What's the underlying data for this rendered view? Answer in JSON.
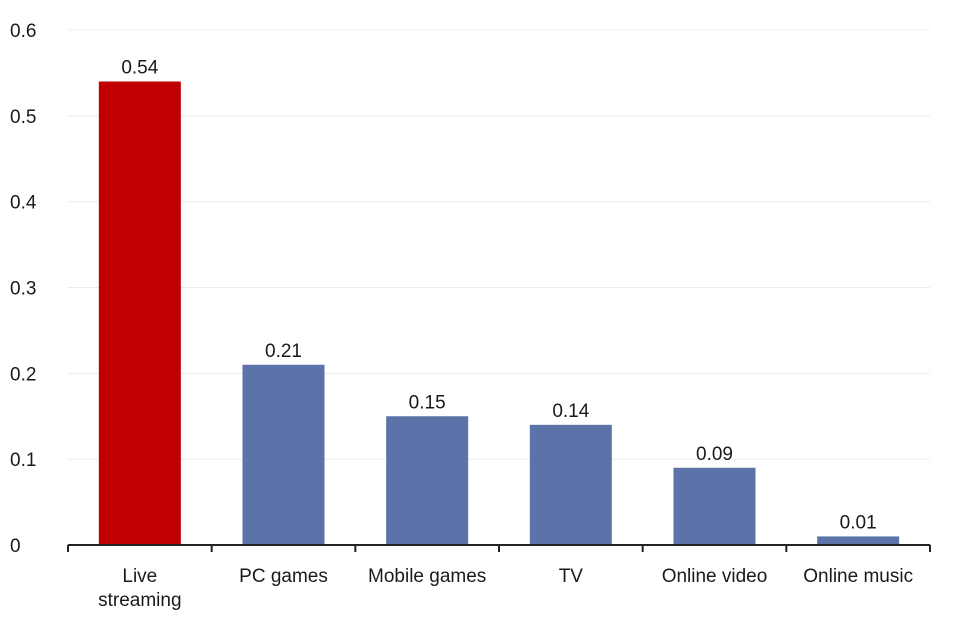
{
  "chart_data": {
    "type": "bar",
    "title": "",
    "xlabel": "",
    "ylabel": "",
    "categories": [
      [
        "Live",
        "streaming"
      ],
      [
        "PC games"
      ],
      [
        "Mobile games"
      ],
      [
        "TV"
      ],
      [
        "Online video"
      ],
      [
        "Online music"
      ]
    ],
    "values": [
      0.54,
      0.21,
      0.15,
      0.14,
      0.09,
      0.01
    ],
    "value_labels": [
      "0.54",
      "0.21",
      "0.15",
      "0.14",
      "0.09",
      "0.01"
    ],
    "ylim": [
      0,
      0.6
    ],
    "yticks": [
      0,
      0.1,
      0.2,
      0.3,
      0.4,
      0.5,
      0.6
    ],
    "ytick_labels": [
      "0",
      "0.1",
      "0.2",
      "0.3",
      "0.4",
      "0.5",
      "0.6"
    ],
    "grid": true,
    "legend": "none",
    "colors": {
      "highlight": "#c00000",
      "default": "#5b73a8",
      "gridline": "#ececec",
      "axis": "#222222"
    },
    "highlight_index": 0
  }
}
